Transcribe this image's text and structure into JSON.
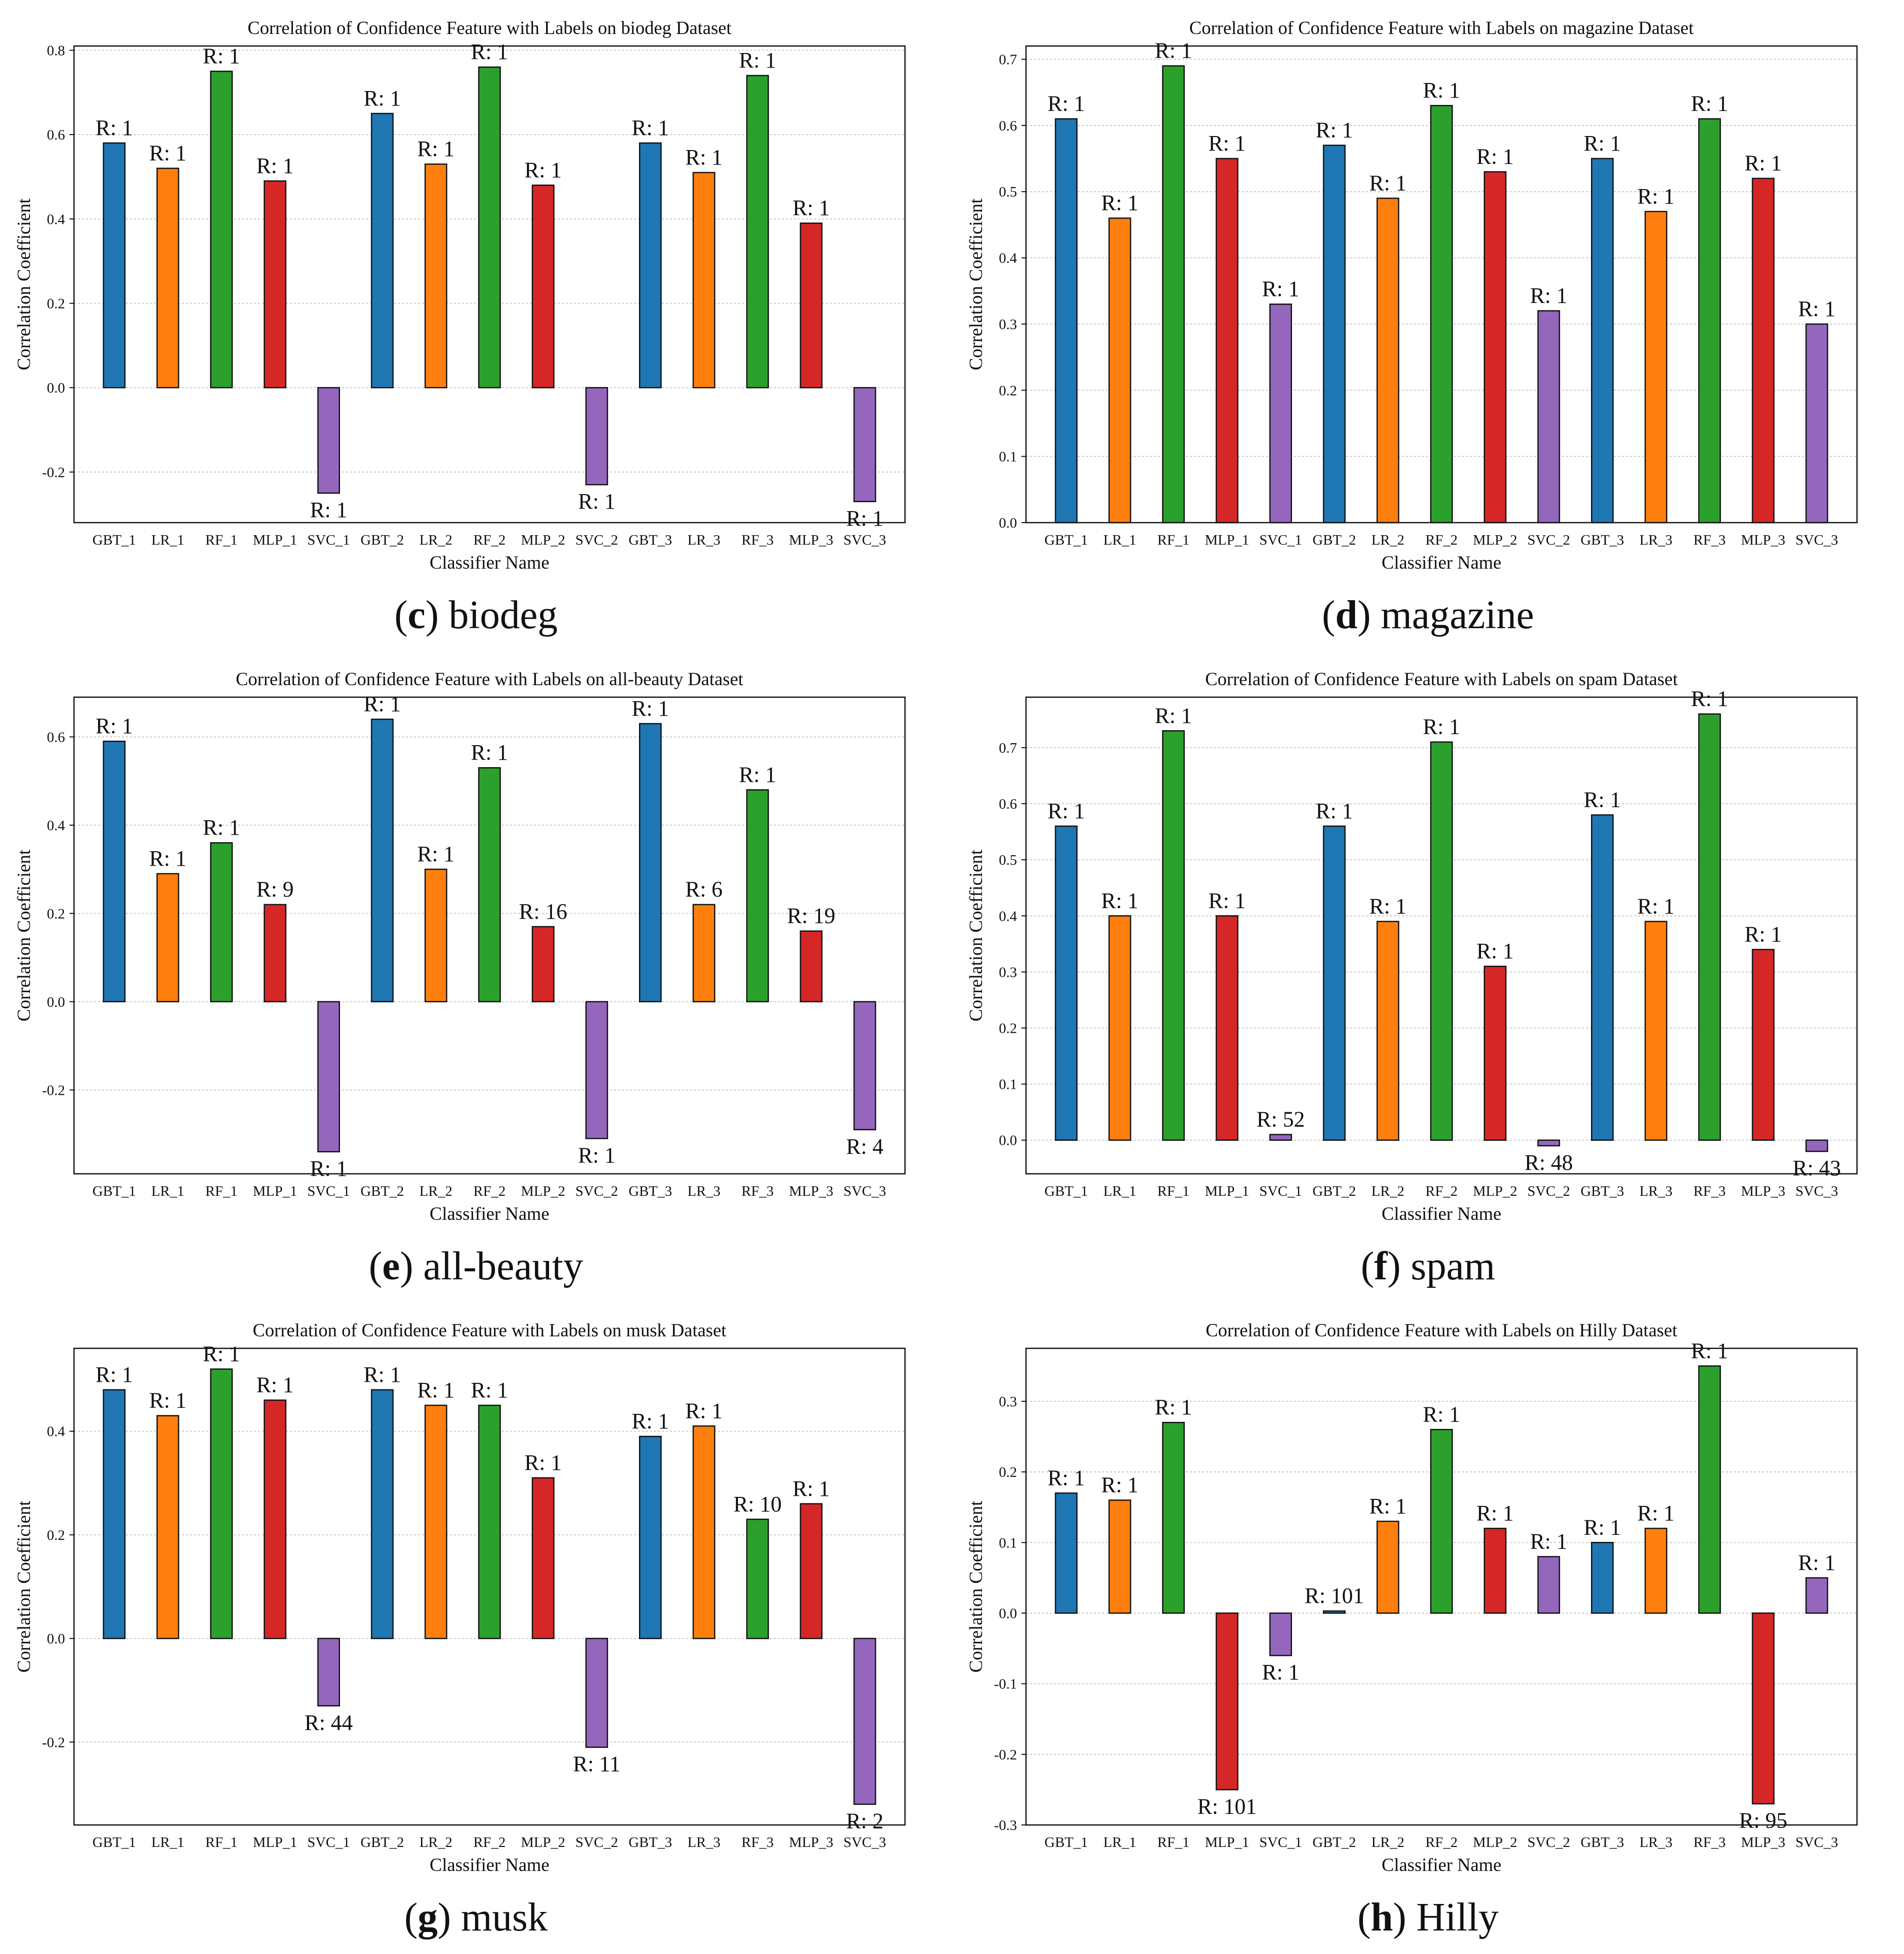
{
  "x_categories": [
    "GBT_1",
    "LR_1",
    "RF_1",
    "MLP_1",
    "SVC_1",
    "GBT_2",
    "LR_2",
    "RF_2",
    "MLP_2",
    "SVC_2",
    "GBT_3",
    "LR_3",
    "RF_3",
    "MLP_3",
    "SVC_3"
  ],
  "colors": {
    "GBT": "#1f77b4",
    "LR": "#ff7f0e",
    "RF": "#2ca02c",
    "MLP": "#d62728",
    "SVC": "#9467bd",
    "edge": "#111111",
    "grid": "#c8c8c8"
  },
  "chart_data": [
    {
      "type": "bar",
      "letter": "c",
      "subtitle": "biodeg",
      "title": "Correlation of Confidence Feature with Labels on biodeg Dataset",
      "xlabel": "Classifier Name",
      "ylabel": "Correlation Coefficient",
      "ylim": [
        -0.32,
        0.81
      ],
      "yticks": [
        -0.2,
        0,
        0.2,
        0.4,
        0.6,
        0.8
      ],
      "ytick_labels": [
        "-0.2",
        "0.0",
        "0.2",
        "0.4",
        "0.6",
        "0.8"
      ],
      "values": [
        0.58,
        0.52,
        0.75,
        0.49,
        -0.25,
        0.65,
        0.53,
        0.76,
        0.48,
        -0.23,
        0.58,
        0.51,
        0.74,
        0.39,
        -0.27
      ],
      "ranks": [
        "R: 1",
        "R: 1",
        "R: 1",
        "R: 1",
        "R: 1",
        "R: 1",
        "R: 1",
        "R: 1",
        "R: 1",
        "R: 1",
        "R: 1",
        "R: 1",
        "R: 1",
        "R: 1",
        "R: 1"
      ]
    },
    {
      "type": "bar",
      "letter": "d",
      "subtitle": "magazine",
      "title": "Correlation of Confidence Feature with Labels on magazine Dataset",
      "xlabel": "Classifier Name",
      "ylabel": "Correlation Coefficient",
      "ylim": [
        0,
        0.72
      ],
      "yticks": [
        0,
        0.1,
        0.2,
        0.3,
        0.4,
        0.5,
        0.6,
        0.7
      ],
      "ytick_labels": [
        "0.0",
        "0.1",
        "0.2",
        "0.3",
        "0.4",
        "0.5",
        "0.6",
        "0.7"
      ],
      "values": [
        0.61,
        0.46,
        0.69,
        0.55,
        0.33,
        0.57,
        0.49,
        0.63,
        0.53,
        0.32,
        0.55,
        0.47,
        0.61,
        0.52,
        0.3
      ],
      "ranks": [
        "R: 1",
        "R: 1",
        "R: 1",
        "R: 1",
        "R: 1",
        "R: 1",
        "R: 1",
        "R: 1",
        "R: 1",
        "R: 1",
        "R: 1",
        "R: 1",
        "R: 1",
        "R: 1",
        "R: 1"
      ]
    },
    {
      "type": "bar",
      "letter": "e",
      "subtitle": "all-beauty",
      "title": "Correlation of Confidence Feature with Labels on all-beauty Dataset",
      "xlabel": "Classifier Name",
      "ylabel": "Correlation Coefficient",
      "ylim": [
        -0.39,
        0.69
      ],
      "yticks": [
        -0.2,
        0,
        0.2,
        0.4,
        0.6
      ],
      "ytick_labels": [
        "-0.2",
        "0.0",
        "0.2",
        "0.4",
        "0.6"
      ],
      "values": [
        0.59,
        0.29,
        0.36,
        0.22,
        -0.34,
        0.64,
        0.3,
        0.53,
        0.17,
        -0.31,
        0.63,
        0.22,
        0.48,
        0.16,
        -0.29
      ],
      "ranks": [
        "R: 1",
        "R: 1",
        "R: 1",
        "R: 9",
        "R: 1",
        "R: 1",
        "R: 1",
        "R: 1",
        "R: 16",
        "R: 1",
        "R: 1",
        "R: 6",
        "R: 1",
        "R: 19",
        "R: 4"
      ]
    },
    {
      "type": "bar",
      "letter": "f",
      "subtitle": "spam",
      "title": "Correlation of Confidence Feature with Labels on spam Dataset",
      "xlabel": "Classifier Name",
      "ylabel": "Correlation Coefficient",
      "ylim": [
        -0.06,
        0.79
      ],
      "yticks": [
        0,
        0.1,
        0.2,
        0.3,
        0.4,
        0.5,
        0.6,
        0.7
      ],
      "ytick_labels": [
        "0.0",
        "0.1",
        "0.2",
        "0.3",
        "0.4",
        "0.5",
        "0.6",
        "0.7"
      ],
      "values": [
        0.56,
        0.4,
        0.73,
        0.4,
        0.01,
        0.56,
        0.39,
        0.71,
        0.31,
        -0.01,
        0.58,
        0.39,
        0.76,
        0.34,
        -0.02
      ],
      "ranks": [
        "R: 1",
        "R: 1",
        "R: 1",
        "R: 1",
        "R: 52",
        "R: 1",
        "R: 1",
        "R: 1",
        "R: 1",
        "R: 48",
        "R: 1",
        "R: 1",
        "R: 1",
        "R: 1",
        "R: 43"
      ]
    },
    {
      "type": "bar",
      "letter": "g",
      "subtitle": "musk",
      "title": "Correlation of Confidence Feature with Labels on musk Dataset",
      "xlabel": "Classifier Name",
      "ylabel": "Correlation Coefficient",
      "ylim": [
        -0.36,
        0.56
      ],
      "yticks": [
        -0.2,
        0,
        0.2,
        0.4
      ],
      "ytick_labels": [
        "-0.2",
        "0.0",
        "0.2",
        "0.4"
      ],
      "values": [
        0.48,
        0.43,
        0.52,
        0.46,
        -0.13,
        0.48,
        0.45,
        0.45,
        0.31,
        -0.21,
        0.39,
        0.41,
        0.23,
        0.26,
        -0.32
      ],
      "ranks": [
        "R: 1",
        "R: 1",
        "R: 1",
        "R: 1",
        "R: 44",
        "R: 1",
        "R: 1",
        "R: 1",
        "R: 1",
        "R: 11",
        "R: 1",
        "R: 1",
        "R: 10",
        "R: 1",
        "R: 2"
      ]
    },
    {
      "type": "bar",
      "letter": "h",
      "subtitle": "Hilly",
      "title": "Correlation of Confidence Feature with Labels on Hilly Dataset",
      "xlabel": "Classifier Name",
      "ylabel": "Correlation Coefficient",
      "ylim": [
        -0.3,
        0.375
      ],
      "yticks": [
        -0.3,
        -0.2,
        -0.1,
        0,
        0.1,
        0.2,
        0.3
      ],
      "ytick_labels": [
        "-0.3",
        "-0.2",
        "-0.1",
        "0.0",
        "0.1",
        "0.2",
        "0.3"
      ],
      "values": [
        0.17,
        0.16,
        0.27,
        -0.25,
        -0.06,
        0.003,
        0.13,
        0.26,
        0.12,
        0.08,
        0.1,
        0.12,
        0.35,
        -0.27,
        0.05
      ],
      "ranks": [
        "R: 1",
        "R: 1",
        "R: 1",
        "R: 101",
        "R: 1",
        "R: 101",
        "R: 1",
        "R: 1",
        "R: 1",
        "R: 1",
        "R: 1",
        "R: 1",
        "R: 1",
        "R: 95",
        "R: 1"
      ]
    }
  ]
}
